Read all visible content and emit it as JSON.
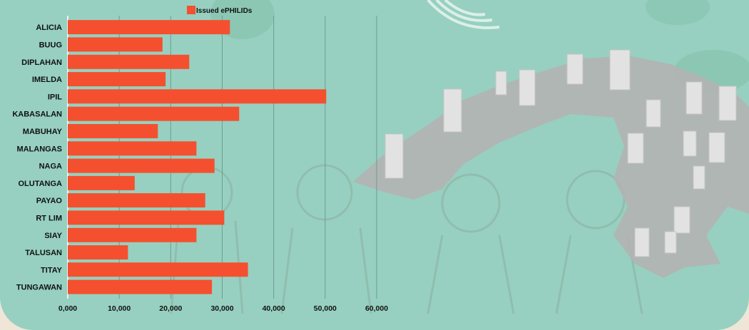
{
  "colors": {
    "bar": "#f4502f",
    "background": "#97d0c0",
    "grid": "#6e9d90",
    "map_land": "#b2b2b2",
    "map_bar": "#dcdcdc",
    "text": "#111111"
  },
  "chart_data": {
    "type": "bar",
    "orientation": "horizontal",
    "categories": [
      "ALICIA",
      "BUUG",
      "DIPLAHAN",
      "IMELDA",
      "IPIL",
      "KABASALAN",
      "MABUHAY",
      "MALANGAS",
      "NAGA",
      "OLUTANGA",
      "PAYAO",
      "RT LIM",
      "SIAY",
      "TALUSAN",
      "TITAY",
      "TUNGAWAN"
    ],
    "series": [
      {
        "name": "Issued ePHILIDs",
        "values": [
          31500,
          18400,
          23600,
          19000,
          50200,
          33300,
          17500,
          25000,
          28500,
          13000,
          26700,
          30400,
          25000,
          11700,
          35000,
          28000
        ]
      }
    ],
    "x_ticks": [
      0,
      10000,
      20000,
      30000,
      40000,
      50000,
      60000
    ],
    "x_tick_labels": [
      "0,000",
      "10,000",
      "20,000",
      "30,000",
      "40,000",
      "50,000",
      "60,000"
    ],
    "xlim": [
      0,
      60000
    ],
    "grid": "vertical",
    "legend_position": "top",
    "title": "",
    "xlabel": "",
    "ylabel": ""
  }
}
